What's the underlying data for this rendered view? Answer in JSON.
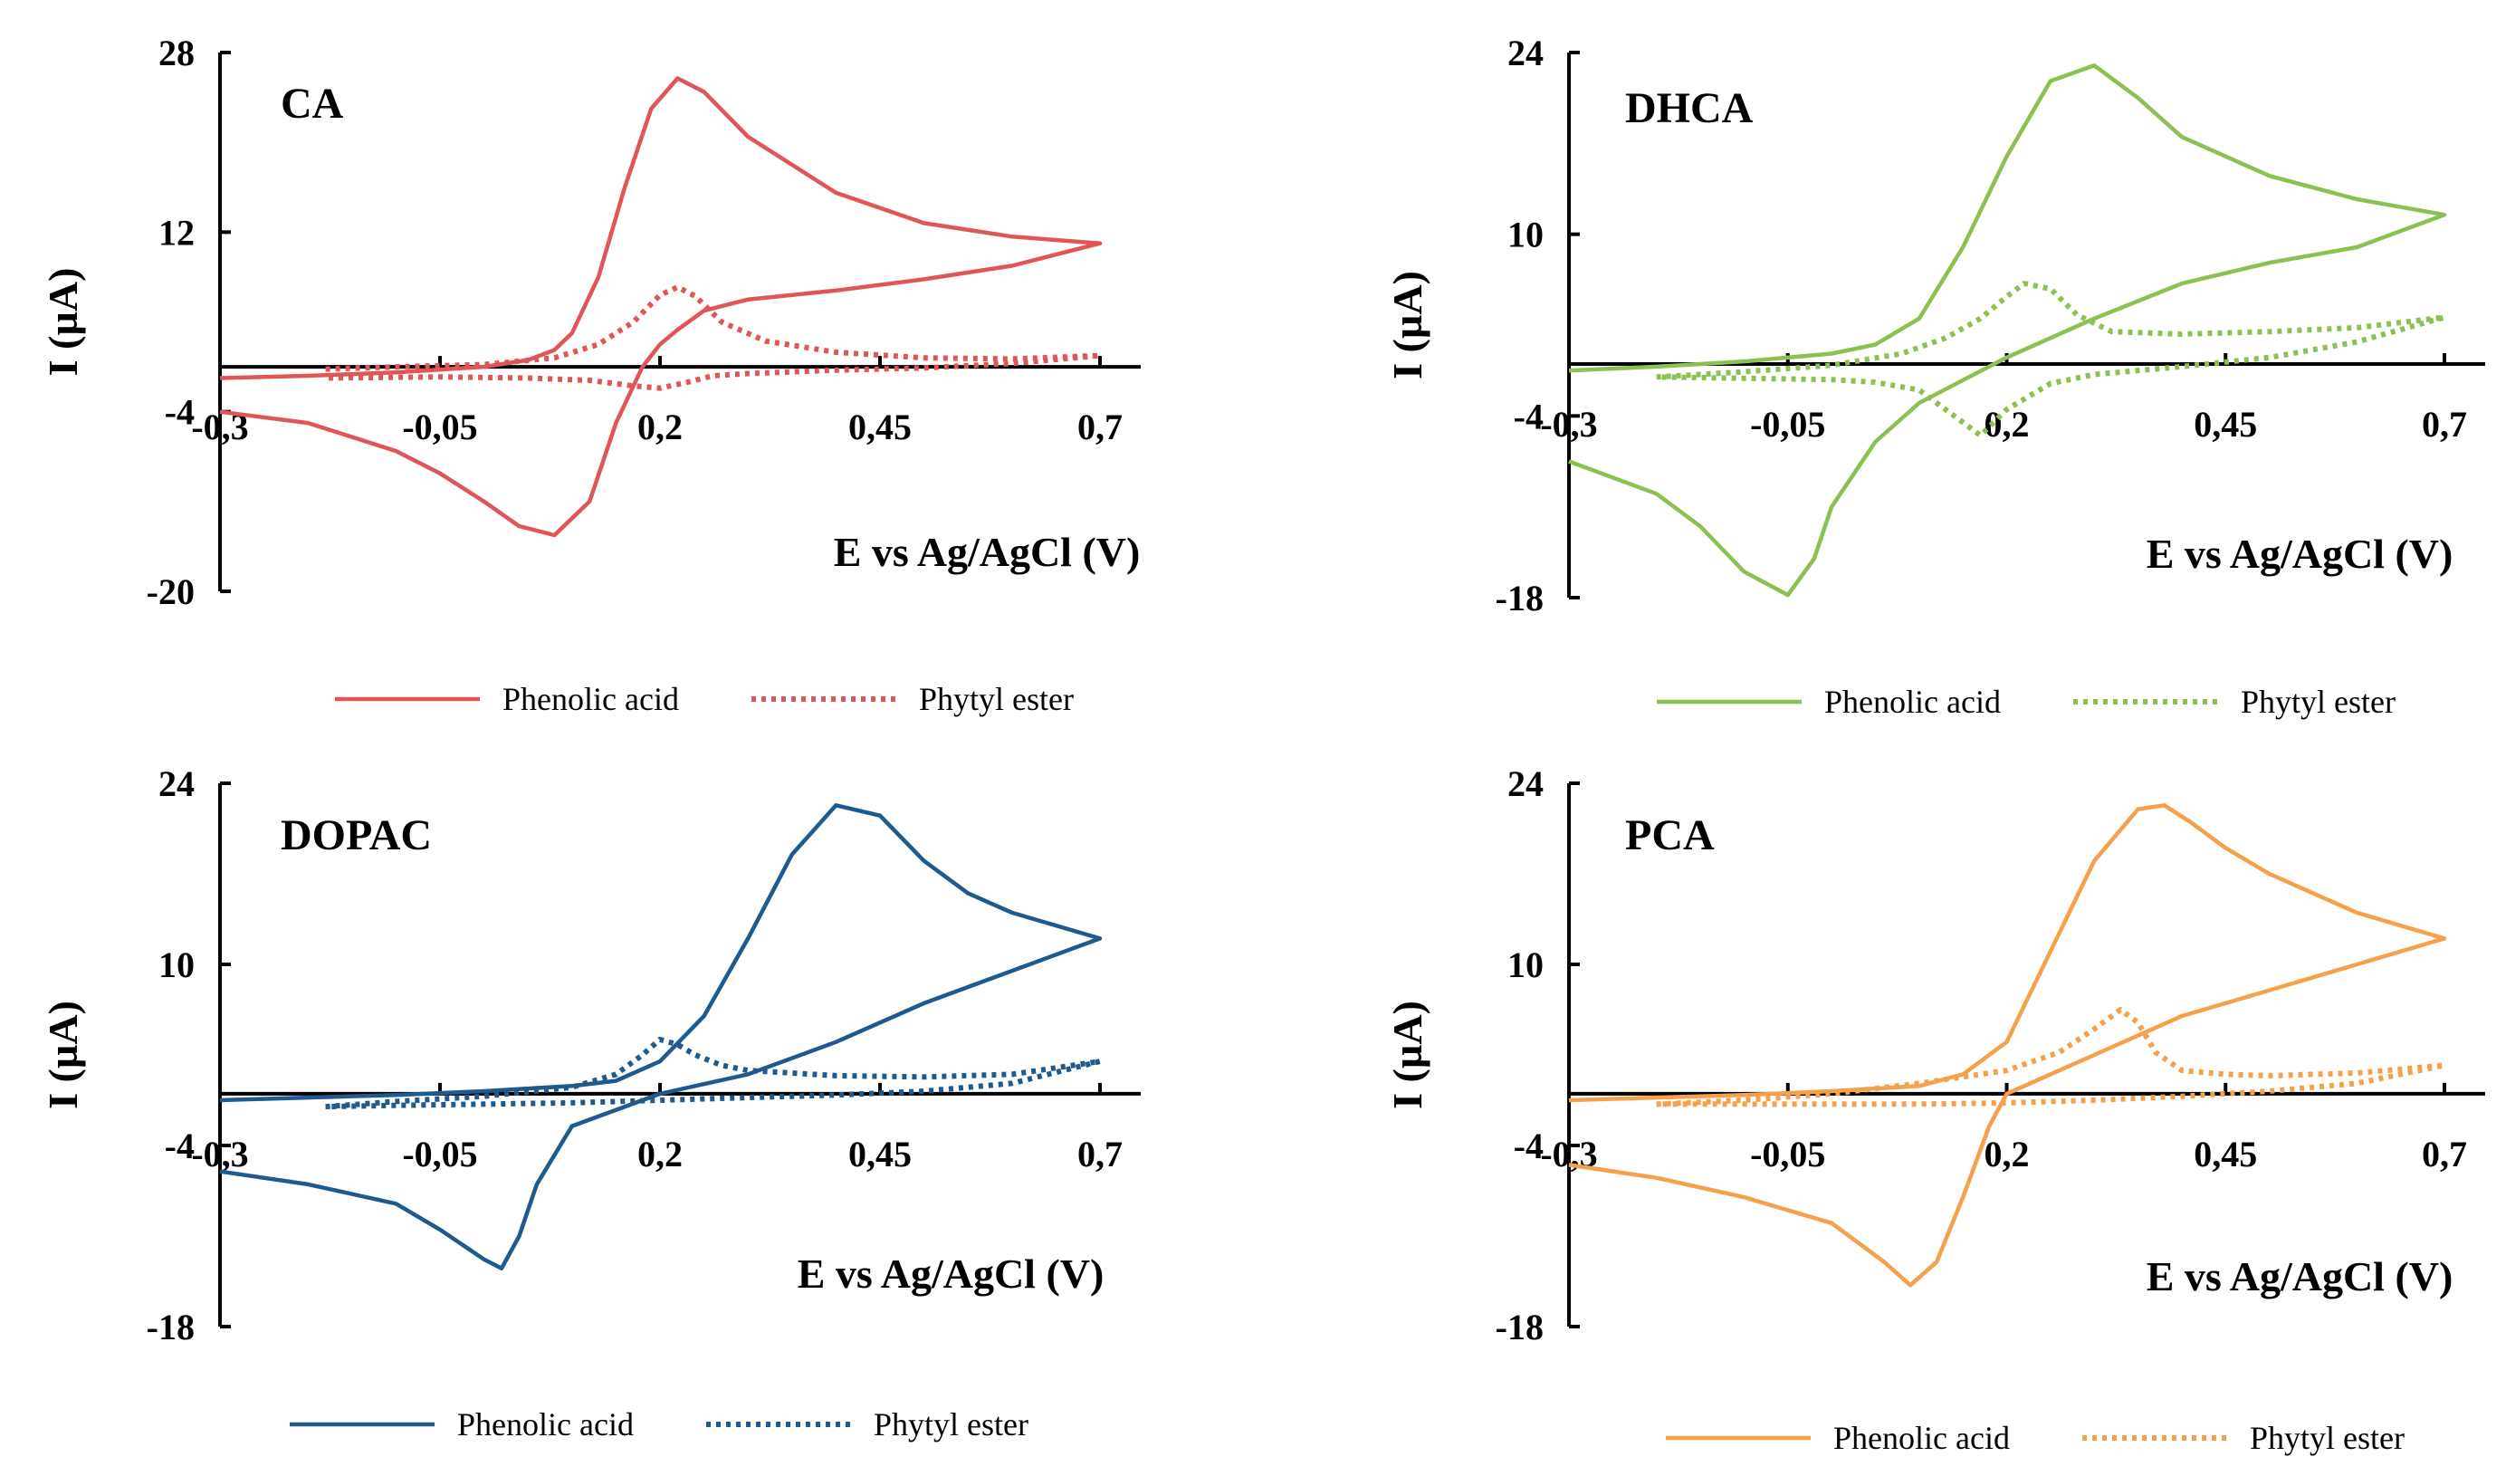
{
  "chart_data": [
    {
      "type": "line",
      "title": "CA",
      "xlabel": "E vs Ag/AgCl (V)",
      "ylabel": "I (µA)",
      "xlim": [
        -0.3,
        0.7
      ],
      "ylim": [
        -20,
        28
      ],
      "x_ticks": [
        "-0,3",
        "-0,05",
        "0,2",
        "0,45",
        "0,7"
      ],
      "y_ticks": [
        "28",
        "12",
        "-4",
        "-20"
      ],
      "color": "#e05555",
      "legend": [
        "Phenolic acid",
        "Phytyl ester"
      ],
      "series": [
        {
          "name": "Phenolic acid",
          "style": "solid",
          "x": [
            -0.3,
            -0.2,
            -0.1,
            0.0,
            0.05,
            0.08,
            0.1,
            0.13,
            0.16,
            0.19,
            0.22,
            0.25,
            0.3,
            0.4,
            0.5,
            0.6,
            0.7,
            0.6,
            0.5,
            0.4,
            0.3,
            0.25,
            0.22,
            0.2,
            0.18,
            0.15,
            0.12,
            0.08,
            0.04,
            0.0,
            -0.05,
            -0.1,
            -0.2,
            -0.3
          ],
          "y": [
            -1.0,
            -0.8,
            -0.5,
            0.0,
            0.6,
            1.5,
            3.0,
            8.0,
            16.0,
            23.0,
            25.7,
            24.5,
            20.5,
            15.5,
            12.8,
            11.6,
            11.0,
            9.0,
            7.8,
            6.8,
            6.0,
            5.0,
            3.3,
            2.0,
            0.0,
            -5.0,
            -12.0,
            -15.0,
            -14.2,
            -12.0,
            -9.5,
            -7.5,
            -5.0,
            -4.0
          ]
        },
        {
          "name": "Phytyl ester",
          "style": "dotted",
          "x": [
            -0.18,
            -0.1,
            0.0,
            0.08,
            0.13,
            0.17,
            0.2,
            0.22,
            0.24,
            0.27,
            0.32,
            0.4,
            0.5,
            0.6,
            0.7,
            0.6,
            0.5,
            0.4,
            0.3,
            0.26,
            0.23,
            0.2,
            0.17,
            0.12,
            0.05,
            -0.05,
            -0.18
          ],
          "y": [
            -0.2,
            0.0,
            0.2,
            0.8,
            2.0,
            4.0,
            6.4,
            7.1,
            6.3,
            4.0,
            2.3,
            1.3,
            0.8,
            0.7,
            1.0,
            0.3,
            -0.1,
            -0.3,
            -0.6,
            -0.8,
            -1.4,
            -1.9,
            -1.7,
            -1.2,
            -1.0,
            -0.9,
            -1.0
          ]
        }
      ]
    },
    {
      "type": "line",
      "title": "DHCA",
      "xlabel": "E vs Ag/AgCl (V)",
      "ylabel": "I (µA)",
      "xlim": [
        -0.3,
        0.7
      ],
      "ylim": [
        -18,
        24
      ],
      "x_ticks": [
        "-0,3",
        "-0,05",
        "0,2",
        "0,45",
        "0,7"
      ],
      "y_ticks": [
        "24",
        "10",
        "-4",
        "-18"
      ],
      "color": "#8cc152",
      "legend": [
        "Phenolic acid",
        "Phytyl ester"
      ],
      "series": [
        {
          "name": "Phenolic acid",
          "style": "solid",
          "x": [
            -0.3,
            -0.2,
            -0.1,
            0.0,
            0.05,
            0.1,
            0.15,
            0.2,
            0.25,
            0.3,
            0.35,
            0.4,
            0.5,
            0.6,
            0.7,
            0.6,
            0.5,
            0.4,
            0.3,
            0.2,
            0.1,
            0.05,
            0.0,
            -0.02,
            -0.05,
            -0.1,
            -0.15,
            -0.2,
            -0.3
          ],
          "y": [
            -0.5,
            -0.2,
            0.2,
            0.8,
            1.5,
            3.5,
            9.0,
            16.0,
            21.8,
            23.0,
            20.5,
            17.5,
            14.5,
            12.7,
            11.5,
            9.0,
            7.8,
            6.2,
            3.5,
            0.5,
            -3.0,
            -6.0,
            -11.0,
            -15.0,
            -17.8,
            -16.0,
            -12.5,
            -10.0,
            -7.5
          ]
        },
        {
          "name": "Phytyl ester",
          "style": "dotted",
          "x": [
            -0.2,
            -0.1,
            0.0,
            0.08,
            0.13,
            0.17,
            0.2,
            0.22,
            0.25,
            0.28,
            0.32,
            0.4,
            0.5,
            0.6,
            0.7,
            0.6,
            0.5,
            0.4,
            0.3,
            0.25,
            0.2,
            0.17,
            0.14,
            0.1,
            0.05,
            0.0,
            -0.1,
            -0.2
          ],
          "y": [
            -1.0,
            -0.6,
            -0.1,
            0.8,
            2.0,
            3.5,
            5.2,
            6.2,
            5.8,
            3.8,
            2.5,
            2.3,
            2.5,
            2.8,
            3.6,
            1.7,
            0.5,
            -0.2,
            -0.8,
            -1.5,
            -3.5,
            -5.5,
            -4.0,
            -2.0,
            -1.4,
            -1.2,
            -1.1,
            -1.0
          ]
        }
      ]
    },
    {
      "type": "line",
      "title": "DOPAC",
      "xlabel": "E vs Ag/AgCl (V)",
      "ylabel": "I (µA)",
      "xlim": [
        -0.3,
        0.7
      ],
      "ylim": [
        -18,
        24
      ],
      "x_ticks": [
        "-0,3",
        "-0,05",
        "0,2",
        "0,45",
        "0,7"
      ],
      "y_ticks": [
        "24",
        "10",
        "-4",
        "-18"
      ],
      "color": "#1f5a8e",
      "legend": [
        "Phenolic acid",
        "Phytyl ester"
      ],
      "series": [
        {
          "name": "Phenolic acid",
          "style": "solid",
          "x": [
            -0.3,
            -0.2,
            -0.1,
            0.0,
            0.1,
            0.15,
            0.2,
            0.25,
            0.3,
            0.35,
            0.4,
            0.45,
            0.5,
            0.55,
            0.6,
            0.7,
            0.6,
            0.5,
            0.4,
            0.3,
            0.2,
            0.1,
            0.06,
            0.04,
            0.02,
            0.0,
            -0.05,
            -0.1,
            -0.2,
            -0.3
          ],
          "y": [
            -0.5,
            -0.3,
            -0.1,
            0.2,
            0.6,
            1.0,
            2.5,
            6.0,
            12.0,
            18.5,
            22.3,
            21.5,
            18.0,
            15.5,
            14.0,
            12.0,
            9.5,
            7.0,
            4.0,
            1.5,
            0.0,
            -2.5,
            -7.0,
            -11.0,
            -13.5,
            -12.8,
            -10.5,
            -8.5,
            -7.0,
            -6.0
          ]
        },
        {
          "name": "Phytyl ester",
          "style": "dotted",
          "x": [
            -0.18,
            -0.1,
            0.0,
            0.1,
            0.15,
            0.18,
            0.2,
            0.22,
            0.24,
            0.27,
            0.3,
            0.4,
            0.5,
            0.6,
            0.7,
            0.6,
            0.5,
            0.4,
            0.3,
            0.2,
            0.1,
            0.0,
            -0.1,
            -0.18
          ],
          "y": [
            -1.0,
            -0.6,
            -0.2,
            0.5,
            1.5,
            3.0,
            4.2,
            3.8,
            3.0,
            2.2,
            1.8,
            1.4,
            1.3,
            1.5,
            2.5,
            0.8,
            0.2,
            -0.1,
            -0.3,
            -0.5,
            -0.7,
            -0.8,
            -0.9,
            -1.0
          ]
        }
      ]
    },
    {
      "type": "line",
      "title": "PCA",
      "xlabel": "E vs Ag/AgCl (V)",
      "ylabel": "I (µA)",
      "xlim": [
        -0.3,
        0.7
      ],
      "ylim": [
        -18,
        24
      ],
      "x_ticks": [
        "-0,3",
        "-0,05",
        "0,2",
        "0,45",
        "0,7"
      ],
      "y_ticks": [
        "24",
        "10",
        "-4",
        "-18"
      ],
      "color": "#f5a04a",
      "legend": [
        "Phenolic acid",
        "Phytyl ester"
      ],
      "series": [
        {
          "name": "Phenolic acid",
          "style": "solid",
          "x": [
            -0.3,
            -0.2,
            -0.1,
            0.0,
            0.1,
            0.15,
            0.2,
            0.25,
            0.3,
            0.35,
            0.38,
            0.41,
            0.45,
            0.5,
            0.6,
            0.7,
            0.6,
            0.5,
            0.4,
            0.3,
            0.2,
            0.18,
            0.15,
            0.12,
            0.09,
            0.06,
            0.0,
            -0.1,
            -0.2,
            -0.3
          ],
          "y": [
            -0.5,
            -0.3,
            -0.1,
            0.2,
            0.6,
            1.5,
            4.0,
            11.0,
            18.0,
            22.0,
            22.3,
            21.0,
            19.0,
            17.0,
            14.0,
            12.0,
            10.0,
            8.0,
            6.0,
            3.0,
            0.0,
            -2.5,
            -8.0,
            -13.0,
            -14.8,
            -13.0,
            -10.0,
            -8.0,
            -6.5,
            -5.5
          ]
        },
        {
          "name": "Phytyl ester",
          "style": "dotted",
          "x": [
            -0.2,
            -0.1,
            0.0,
            0.1,
            0.2,
            0.26,
            0.3,
            0.33,
            0.35,
            0.37,
            0.4,
            0.45,
            0.5,
            0.6,
            0.7,
            0.6,
            0.5,
            0.4,
            0.3,
            0.2,
            0.1,
            0.0,
            -0.1,
            -0.2
          ],
          "y": [
            -0.8,
            -0.5,
            0.0,
            0.8,
            1.8,
            3.2,
            5.0,
            6.5,
            5.5,
            3.2,
            1.8,
            1.5,
            1.4,
            1.6,
            2.2,
            0.8,
            0.2,
            -0.2,
            -0.5,
            -0.7,
            -0.8,
            -0.8,
            -0.8,
            -0.8
          ]
        }
      ]
    }
  ]
}
